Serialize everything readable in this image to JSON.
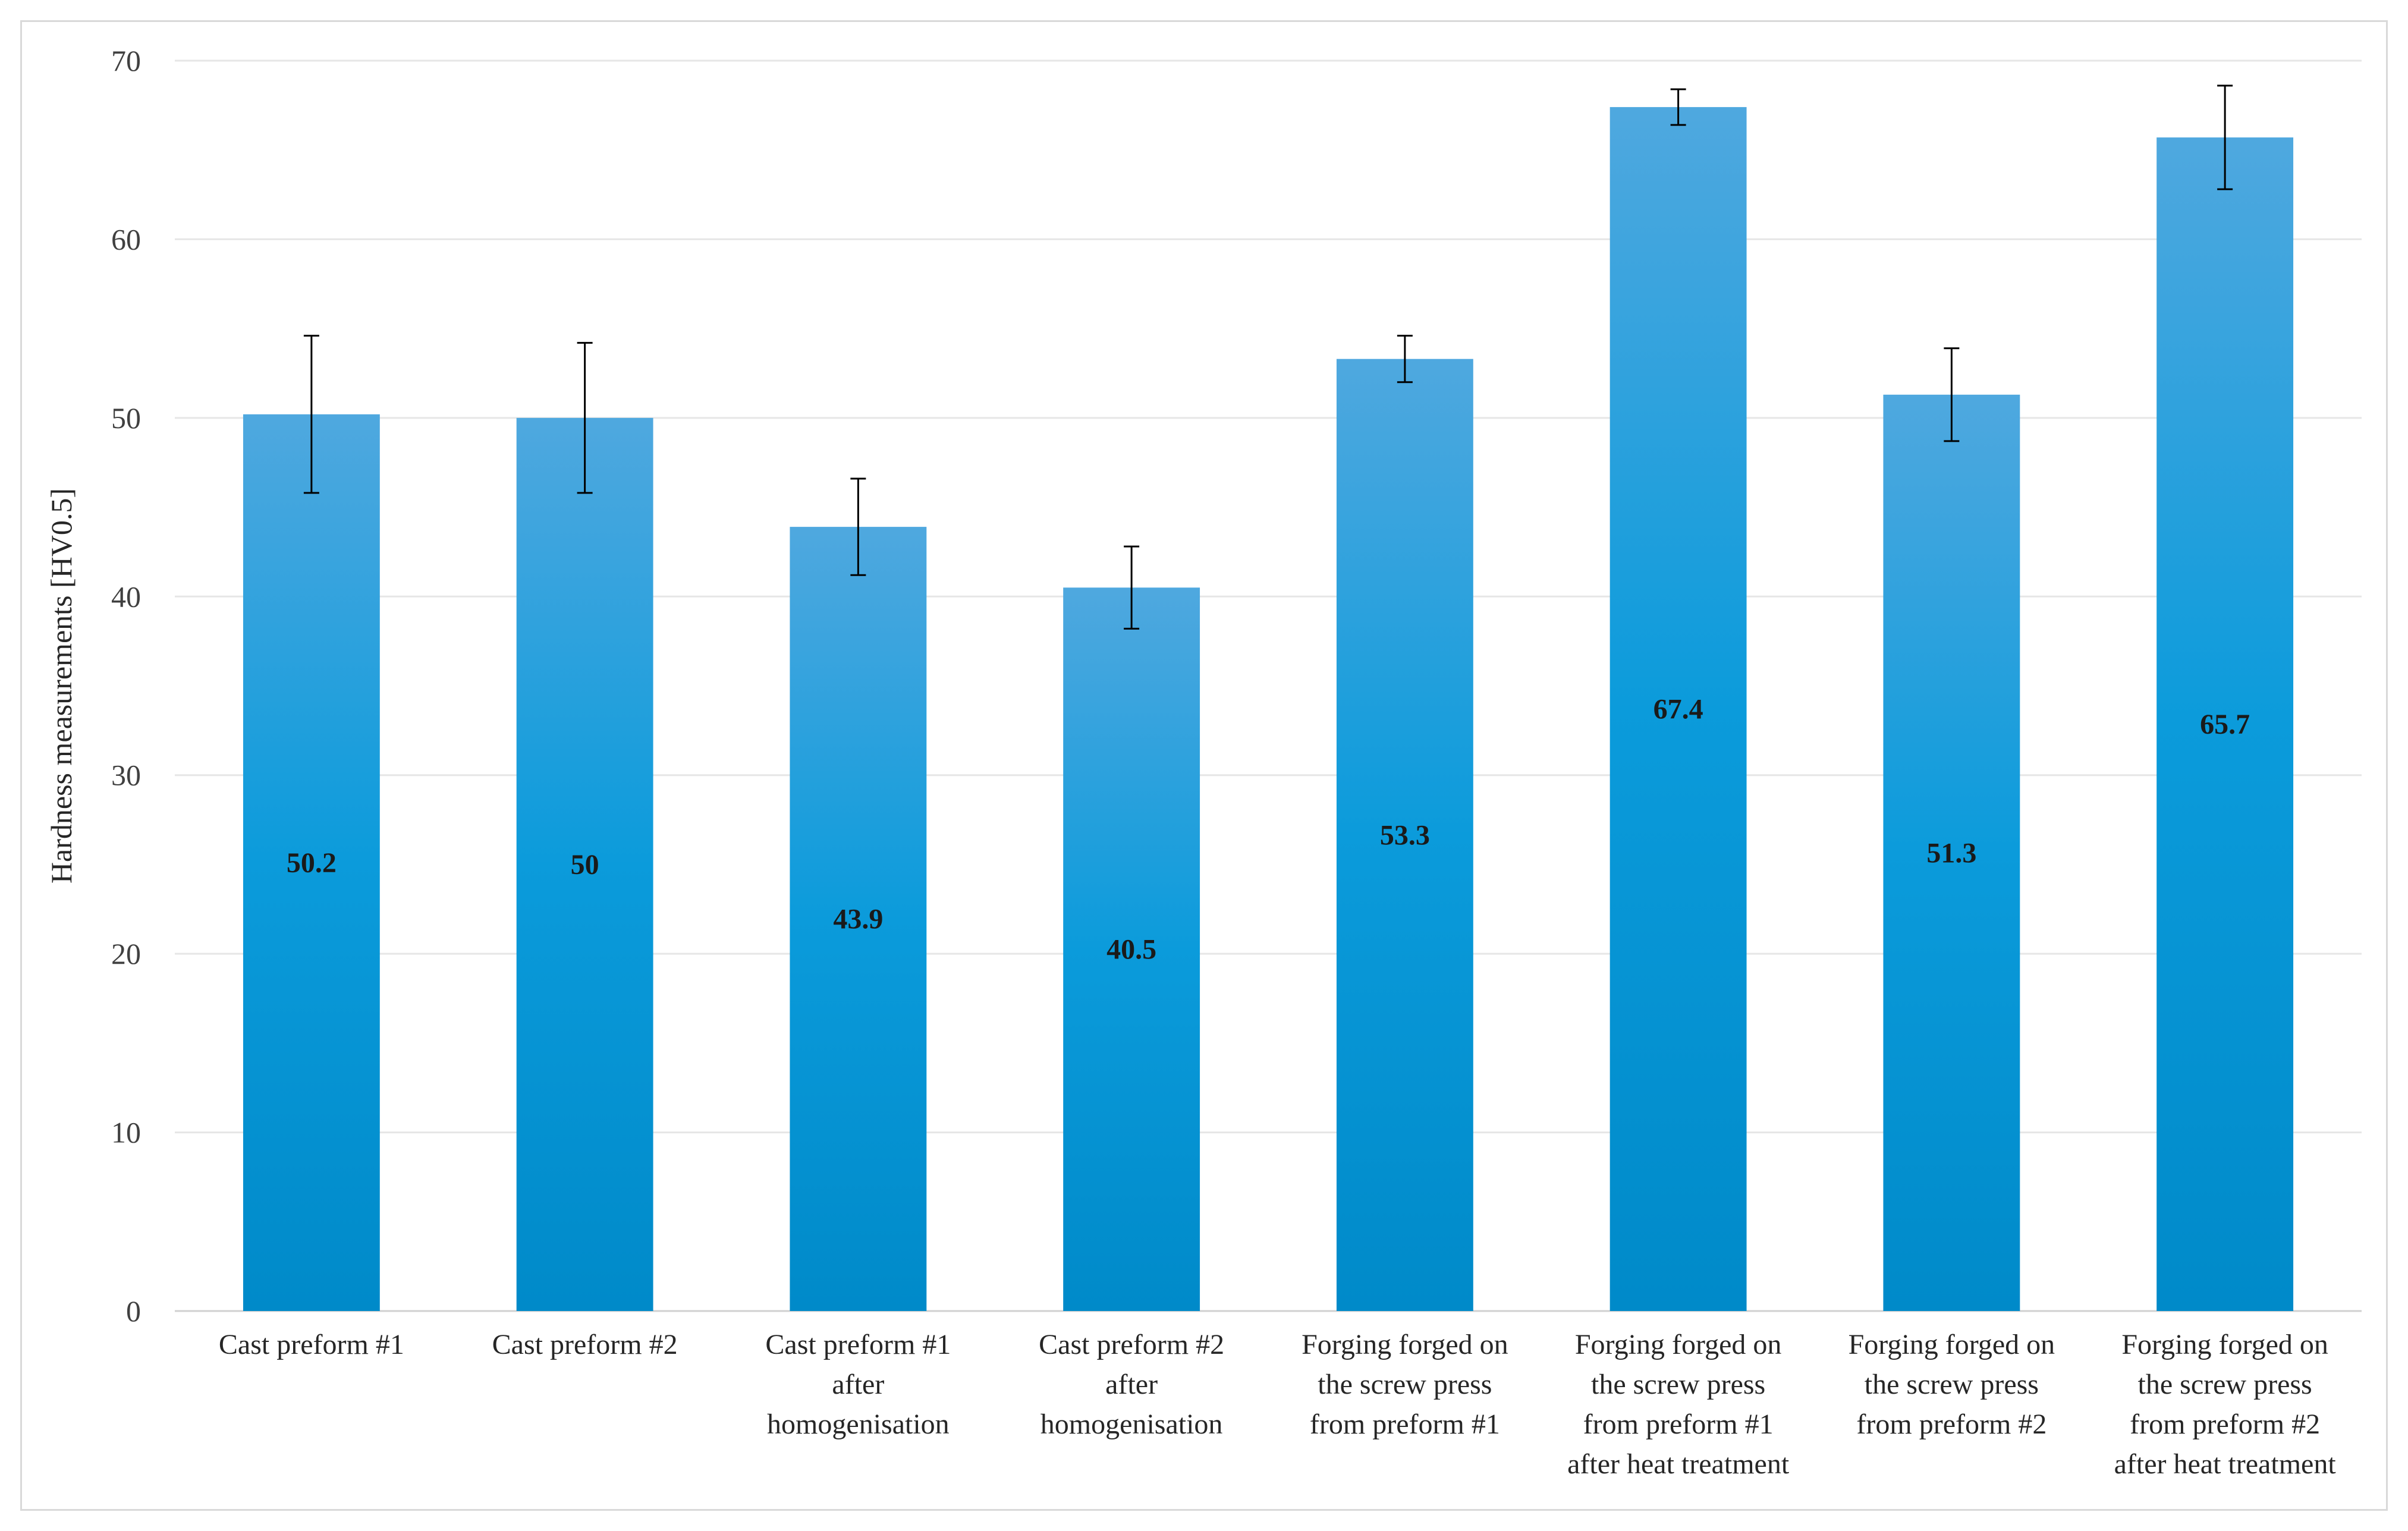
{
  "chart_data": {
    "type": "bar",
    "title": "",
    "xlabel": "",
    "ylabel": "Hardness measurements  [HV0.5]",
    "ylim": [
      0,
      70
    ],
    "yticks": [
      0,
      10,
      20,
      30,
      40,
      50,
      60,
      70
    ],
    "grid": true,
    "legend": "none",
    "categories": [
      [
        "Cast preform #1"
      ],
      [
        "Cast preform #2"
      ],
      [
        "Cast preform #1",
        "after",
        "homogenisation"
      ],
      [
        "Cast preform #2",
        "after",
        "homogenisation"
      ],
      [
        "Forging forged on",
        "the screw press",
        "from preform #1"
      ],
      [
        "Forging forged on",
        "the screw press",
        "from preform #1",
        "after heat treatment"
      ],
      [
        "Forging forged on",
        "the screw press",
        "from preform #2"
      ],
      [
        "Forging forged on",
        "the screw press",
        "from preform #2",
        "after heat treatment"
      ]
    ],
    "values": [
      50.2,
      50,
      43.9,
      40.5,
      53.3,
      67.4,
      51.3,
      65.7
    ],
    "data_labels": [
      "50.2",
      "50",
      "43.9",
      "40.5",
      "53.3",
      "67.4",
      "51.3",
      "65.7"
    ],
    "error_bars": [
      4.4,
      4.2,
      2.7,
      2.3,
      1.3,
      1.0,
      2.6,
      2.9
    ],
    "bar_color": "#0B9BDB",
    "bar_color_top": "#4FA8DF",
    "bar_color_bottom": "#008AC9",
    "grid_color": "#e6e6e6",
    "axis_color": "#d0d0d0",
    "error_color": "#000000"
  }
}
